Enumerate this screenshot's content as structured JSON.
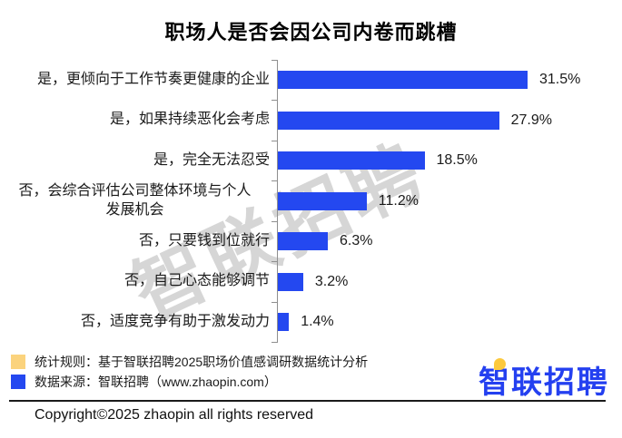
{
  "title": "职场人是否会因公司内卷而跳槽",
  "watermark": "智联招聘",
  "chart_data": {
    "type": "bar",
    "orientation": "horizontal",
    "categories": [
      "是，更倾向于工作节奏更健康的企业",
      "是，如果持续恶化会考虑",
      "是，完全无法忍受",
      "否，会综合评估公司整体环境与个人\n发展机会",
      "否，只要钱到位就行",
      "否，自己心态能够调节",
      "否，适度竞争有助于激发动力"
    ],
    "values": [
      31.5,
      27.9,
      18.5,
      11.2,
      6.3,
      3.2,
      1.4
    ],
    "value_labels": [
      "31.5%",
      "27.9%",
      "18.5%",
      "11.2%",
      "6.3%",
      "3.2%",
      "1.4%"
    ],
    "xlim": [
      0,
      35
    ],
    "bar_color": "#2448f0",
    "grid": false,
    "legend_position": "none"
  },
  "footer": {
    "legend": [
      {
        "color": "#fbd37d",
        "label": "统计规则：基于智联招聘2025职场价值感调研数据统计分析"
      },
      {
        "color": "#2448f0",
        "label": "数据来源：智联招聘（www.zhaopin.com）"
      }
    ],
    "logo_text": "智联招聘",
    "copyright": "Copyright©2025 zhaopin all rights reserved"
  },
  "colors": {
    "bar_blue": "#2448f0",
    "legend_yellow": "#fbd37d",
    "logo_blue": "#2440f0",
    "logo_dot_yellow": "#fcc93d",
    "axis_gray": "#8f8f8f",
    "watermark_gray": "#a5a5a5"
  }
}
